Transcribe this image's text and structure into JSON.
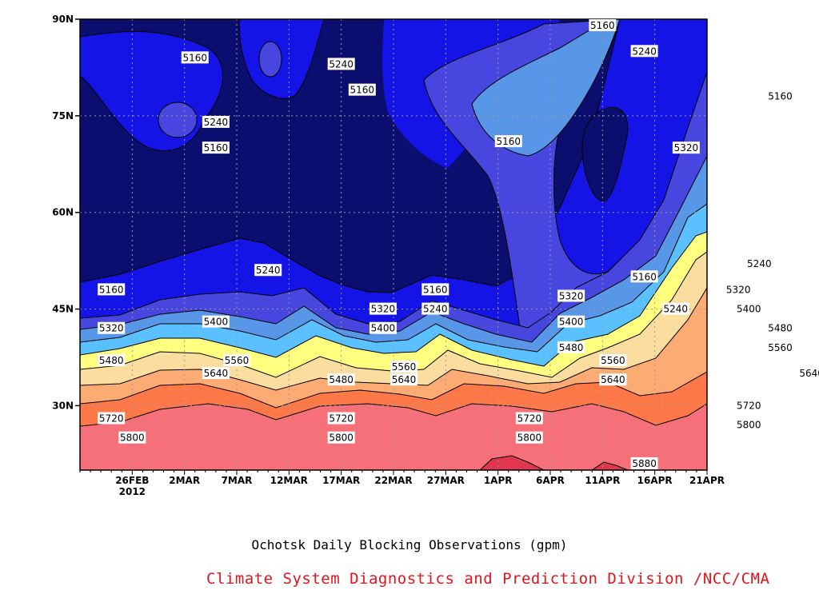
{
  "chart_data": {
    "type": "contour",
    "title": "Ochotsk Daily Blocking Observations (gpm)",
    "credit": "Climate System Diagnostics and Prediction Division /NCC/CMA",
    "y_ticks": [
      "90N",
      "75N",
      "60N",
      "45N",
      "30N"
    ],
    "y_tick_values": [
      90,
      75,
      60,
      45,
      30
    ],
    "ylim": [
      20,
      90
    ],
    "x_ticks": [
      "26FEB",
      "2MAR",
      "7MAR",
      "12MAR",
      "17MAR",
      "22MAR",
      "27MAR",
      "1APR",
      "6APR",
      "11APR",
      "16APR",
      "21APR"
    ],
    "x_tick_day_index": [
      5,
      10,
      15,
      20,
      25,
      30,
      35,
      40,
      45,
      50,
      55,
      60
    ],
    "x_year_label": "2012",
    "xlim_day_index": [
      0,
      60
    ],
    "contour_levels": [
      5160,
      5240,
      5320,
      5400,
      5480,
      5560,
      5640,
      5720,
      5800,
      5880
    ],
    "band_colors": [
      "#0b0e6e",
      "#1414e6",
      "#4747e0",
      "#5896e8",
      "#5ac0ff",
      "#ffff80",
      "#fadd9f",
      "#fcab73",
      "#ff7848",
      "#f57078",
      "#e03650"
    ],
    "contour_labels": [
      {
        "text": "5160",
        "lon": 11,
        "lat": 84
      },
      {
        "text": "5240",
        "lon": 25,
        "lat": 83
      },
      {
        "text": "5160",
        "lon": 27,
        "lat": 79
      },
      {
        "text": "5240",
        "lon": 13,
        "lat": 74
      },
      {
        "text": "5160",
        "lon": 13,
        "lat": 70
      },
      {
        "text": "5160",
        "lon": 50,
        "lat": 89
      },
      {
        "text": "5240",
        "lon": 54,
        "lat": 85
      },
      {
        "text": "5320",
        "lon": 58,
        "lat": 70
      },
      {
        "text": "5160",
        "lon": 41,
        "lat": 71
      },
      {
        "text": "5160",
        "lon": 67,
        "lat": 78
      },
      {
        "text": "5240",
        "lon": 65,
        "lat": 52
      },
      {
        "text": "5160",
        "lon": 3,
        "lat": 48
      },
      {
        "text": "5240",
        "lon": 18,
        "lat": 51
      },
      {
        "text": "5160",
        "lon": 34,
        "lat": 48
      },
      {
        "text": "5240",
        "lon": 34,
        "lat": 45
      },
      {
        "text": "5320",
        "lon": 3,
        "lat": 42
      },
      {
        "text": "5320",
        "lon": 29,
        "lat": 45
      },
      {
        "text": "5400",
        "lon": 13,
        "lat": 43
      },
      {
        "text": "5400",
        "lon": 29,
        "lat": 42
      },
      {
        "text": "5160",
        "lon": 54,
        "lat": 50
      },
      {
        "text": "5320",
        "lon": 47,
        "lat": 47
      },
      {
        "text": "5240",
        "lon": 57,
        "lat": 45
      },
      {
        "text": "5320",
        "lon": 63,
        "lat": 48
      },
      {
        "text": "5400",
        "lon": 47,
        "lat": 43
      },
      {
        "text": "5400",
        "lon": 64,
        "lat": 45
      },
      {
        "text": "5480",
        "lon": 3,
        "lat": 37
      },
      {
        "text": "5560",
        "lon": 15,
        "lat": 37
      },
      {
        "text": "5480",
        "lon": 25,
        "lat": 34
      },
      {
        "text": "5560",
        "lon": 31,
        "lat": 36
      },
      {
        "text": "5480",
        "lon": 47,
        "lat": 39
      },
      {
        "text": "5480",
        "lon": 67,
        "lat": 42
      },
      {
        "text": "5560",
        "lon": 51,
        "lat": 37
      },
      {
        "text": "5560",
        "lon": 67,
        "lat": 39
      },
      {
        "text": "5640",
        "lon": 13,
        "lat": 35
      },
      {
        "text": "5640",
        "lon": 31,
        "lat": 34
      },
      {
        "text": "5640",
        "lon": 51,
        "lat": 34
      },
      {
        "text": "5640",
        "lon": 70,
        "lat": 35
      },
      {
        "text": "5720",
        "lon": 3,
        "lat": 28
      },
      {
        "text": "5720",
        "lon": 25,
        "lat": 28
      },
      {
        "text": "5720",
        "lon": 43,
        "lat": 28
      },
      {
        "text": "5720",
        "lon": 64,
        "lat": 30
      },
      {
        "text": "5800",
        "lon": 5,
        "lat": 25
      },
      {
        "text": "5800",
        "lon": 25,
        "lat": 25
      },
      {
        "text": "5800",
        "lon": 43,
        "lat": 25
      },
      {
        "text": "5800",
        "lon": 64,
        "lat": 27
      },
      {
        "text": "5880",
        "lon": 54,
        "lat": 21
      }
    ]
  }
}
